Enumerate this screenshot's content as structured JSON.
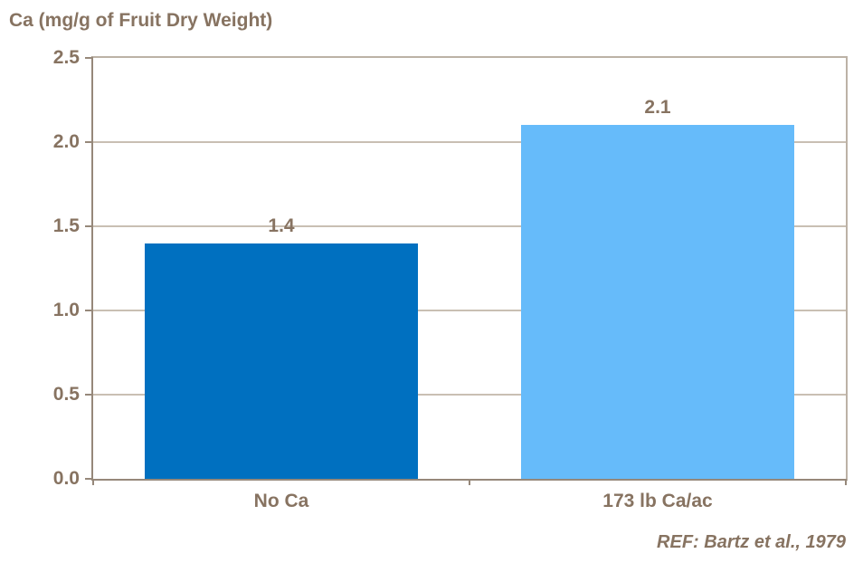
{
  "chart_data": {
    "type": "bar",
    "title": "Ca (mg/g of Fruit Dry Weight)",
    "categories": [
      "No Ca",
      "173 lb Ca/ac"
    ],
    "values": [
      1.4,
      2.1
    ],
    "value_labels": [
      "1.4",
      "2.1"
    ],
    "bar_colors": [
      "#0070C0",
      "#66BBFA"
    ],
    "ylim": [
      0,
      2.5
    ],
    "yticks": [
      0.0,
      0.5,
      1.0,
      1.5,
      2.0,
      2.5
    ],
    "ytick_labels": [
      "0.0",
      "0.5",
      "1.0",
      "1.5",
      "2.0",
      "2.5"
    ],
    "grid": true,
    "legend_position": "none",
    "annotation": "REF: Bartz et al., 1979"
  },
  "colors": {
    "text": "#877361",
    "axis": "#96887A",
    "border_light": "#BCB2A6",
    "gridline": "#C9BFB3",
    "background": "#FFFFFF"
  }
}
